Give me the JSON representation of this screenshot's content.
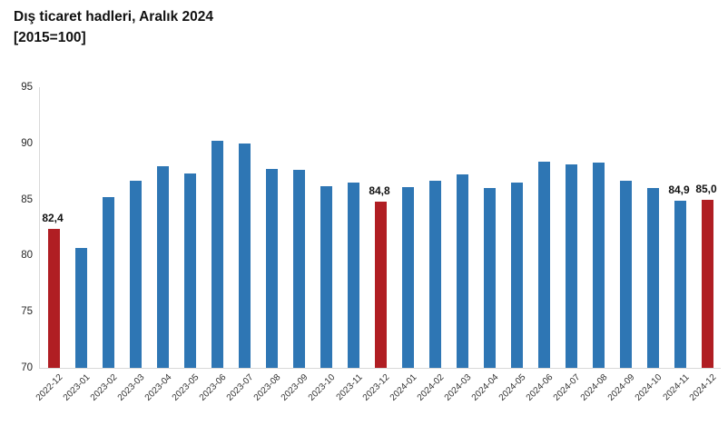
{
  "header": {
    "title": "Dış ticaret hadleri, Aralık 2024",
    "subtitle": "[2015=100]"
  },
  "chart_data": {
    "type": "bar",
    "title": "Dış ticaret hadleri, Aralık 2024",
    "subtitle": "[2015=100]",
    "categories": [
      "2022-12",
      "2023-01",
      "2023-02",
      "2023-03",
      "2023-04",
      "2023-05",
      "2023-06",
      "2023-07",
      "2023-08",
      "2023-09",
      "2023-10",
      "2023-11",
      "2023-12",
      "2024-01",
      "2024-02",
      "2024-03",
      "2024-04",
      "2024-05",
      "2024-06",
      "2024-07",
      "2024-08",
      "2024-09",
      "2024-10",
      "2024-11",
      "2024-12"
    ],
    "values": [
      82.4,
      80.7,
      85.2,
      86.7,
      88.0,
      87.3,
      90.2,
      90.0,
      87.7,
      87.6,
      86.2,
      86.5,
      84.8,
      86.1,
      86.7,
      87.2,
      86.0,
      86.5,
      88.4,
      88.1,
      88.3,
      86.7,
      86.0,
      84.9,
      85.0
    ],
    "point_labels": [
      "82,4",
      null,
      null,
      null,
      null,
      null,
      null,
      null,
      null,
      null,
      null,
      null,
      "84,8",
      null,
      null,
      null,
      null,
      null,
      null,
      null,
      null,
      null,
      null,
      "84,9",
      "85,0"
    ],
    "highlight_indices": [
      0,
      12,
      24
    ],
    "ylim": [
      70,
      95
    ],
    "yticks": [
      95,
      90,
      85,
      80,
      75,
      70
    ],
    "grid": false,
    "legend": null,
    "xlabel": "",
    "ylabel": "",
    "colors": {
      "bar_default": "#2e76b4",
      "bar_highlight": "#b01e23",
      "axis_line": "#d9d9d9",
      "axis_text": "#262626",
      "label_text": "#111111"
    }
  }
}
